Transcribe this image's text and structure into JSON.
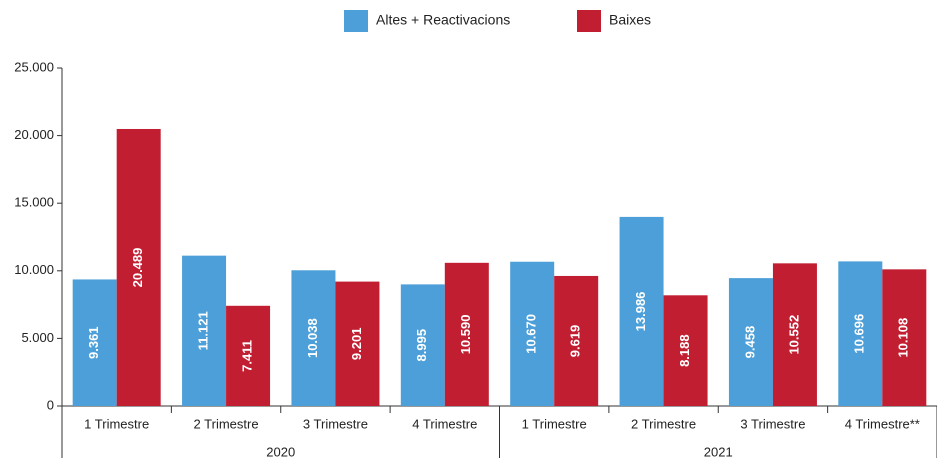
{
  "chart_data": {
    "type": "bar",
    "categories": [
      "1 Trimestre",
      "2 Trimestre",
      "3 Trimestre",
      "4 Trimestre",
      "1 Trimestre",
      "2 Trimestre",
      "3 Trimestre",
      "4 Trimestre**"
    ],
    "x_groups": [
      "2020",
      "2021"
    ],
    "series": [
      {
        "name": "Altes + Reactivacions",
        "color": "#4c9fd8",
        "values": [
          9361,
          11121,
          10038,
          8995,
          10670,
          13986,
          9458,
          10696
        ],
        "value_labels": [
          "9.361",
          "11.121",
          "10.038",
          "8.995",
          "10.670",
          "13.986",
          "9.458",
          "10.696"
        ]
      },
      {
        "name": "Baixes",
        "color": "#c11e32",
        "values": [
          20489,
          7411,
          9201,
          10590,
          9619,
          8188,
          10552,
          10108
        ],
        "value_labels": [
          "20.489",
          "7.411",
          "9.201",
          "10.590",
          "9.619",
          "8.188",
          "10.552",
          "10.108"
        ]
      }
    ],
    "ylim": [
      0,
      25000
    ],
    "yticks": [
      0,
      {
        "value": 5000,
        "label": "5.000"
      },
      {
        "value": 10000,
        "label": "10.000"
      },
      {
        "value": 15000,
        "label": "15.000"
      },
      {
        "value": 20000,
        "label": "20.000"
      },
      {
        "value": 25000,
        "label": "25.000"
      }
    ],
    "grid": false,
    "legend": "top"
  }
}
